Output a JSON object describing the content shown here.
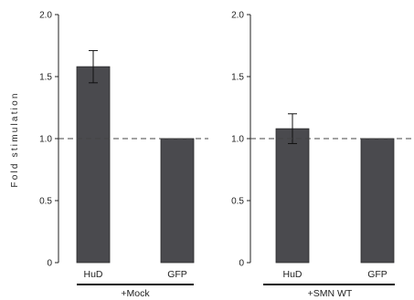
{
  "chart_data": {
    "type": "bar",
    "ylabel": "Fold stimulation",
    "ylim": [
      0,
      2.0
    ],
    "yticks": [
      "0",
      "0.5",
      "1.0",
      "1.5",
      "2.0"
    ],
    "yticks_values": [
      0,
      0.5,
      1.0,
      1.5,
      2.0
    ],
    "reference_line": 1.0,
    "bar_color": "#4a4a4e",
    "panels": [
      {
        "group_label": "+Mock",
        "categories": [
          "HuD",
          "GFP"
        ],
        "values": [
          1.58,
          1.0
        ],
        "errors": [
          0.13,
          null
        ]
      },
      {
        "group_label": "+SMN WT",
        "categories": [
          "HuD",
          "GFP"
        ],
        "values": [
          1.08,
          1.0
        ],
        "errors": [
          0.12,
          null
        ]
      }
    ]
  }
}
